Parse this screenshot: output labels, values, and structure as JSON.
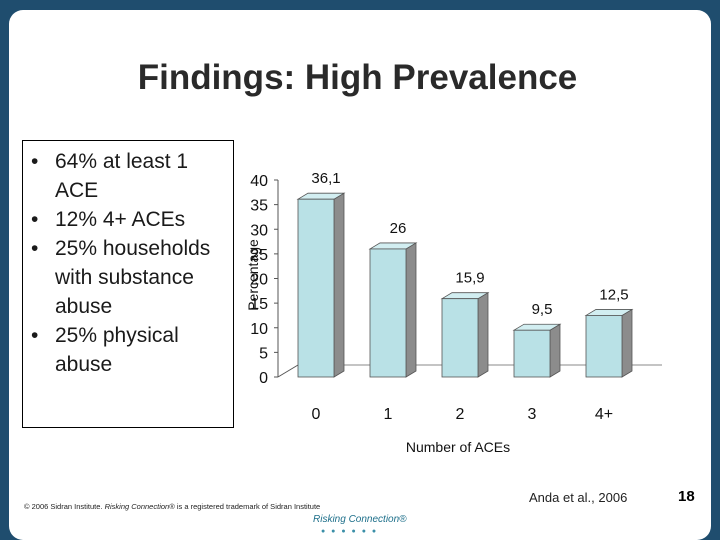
{
  "slide": {
    "title": "Findings: High Prevalence",
    "bullets": [
      {
        "marker": "•",
        "text": "64% at least 1 ACE"
      },
      {
        "marker": "•",
        "text": "12%  4+ ACEs"
      },
      {
        "marker": "•",
        "text": "25% households with substance abuse"
      },
      {
        "marker": "•",
        "text": "25% physical abuse"
      }
    ],
    "footer": {
      "prefix": "© 2006 Sidran Institute. ",
      "italic": "Risking Connection",
      "suffix": "® is a registered trademark of Sidran Institute"
    },
    "citation": "Anda et al., 2006",
    "page_number": "18",
    "logo": {
      "text": "Risking Connection®",
      "dots": "● ● ● ● ● ●"
    }
  },
  "colors": {
    "frame": "#1f4d6e",
    "bar_front": "#b9e1e6",
    "bar_side": "#8c8c8c",
    "bar_top": "#d2eef1"
  },
  "chart_data": {
    "type": "bar",
    "categories": [
      "0",
      "1",
      "2",
      "3",
      "4+"
    ],
    "values": [
      36.1,
      26,
      15.9,
      9.5,
      12.5
    ],
    "data_labels": [
      "36,1",
      "26",
      "15,9",
      "9,5",
      "12,5"
    ],
    "yticks": [
      0,
      5,
      10,
      15,
      20,
      25,
      30,
      35,
      40
    ],
    "ylim": [
      0,
      40
    ],
    "xlabel": "Number of ACEs",
    "ylabel": "Percentage",
    "grid": false,
    "legend": "none",
    "style": "3d-columns"
  }
}
